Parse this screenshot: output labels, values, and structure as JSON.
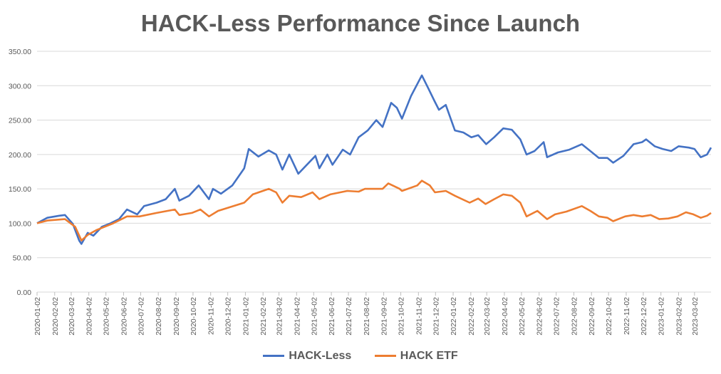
{
  "chart_data": {
    "type": "line",
    "title": "HACK-Less Performance Since Launch",
    "xlabel": "",
    "ylabel": "",
    "ylim": [
      0,
      350
    ],
    "y_ticks": [
      "0.00",
      "50.00",
      "100.00",
      "150.00",
      "200.00",
      "250.00",
      "300.00",
      "350.00"
    ],
    "x_ticks": [
      "2020-01-02",
      "2020-02-02",
      "2020-03-02",
      "2020-04-02",
      "2020-05-02",
      "2020-06-02",
      "2020-07-02",
      "2020-08-02",
      "2020-09-02",
      "2020-10-02",
      "2020-11-02",
      "2020-12-02",
      "2021-01-02",
      "2021-02-02",
      "2021-03-02",
      "2021-04-02",
      "2021-05-02",
      "2021-06-02",
      "2021-07-02",
      "2021-08-02",
      "2021-09-02",
      "2021-10-02",
      "2021-11-02",
      "2021-12-02",
      "2022-01-02",
      "2022-02-02",
      "2022-03-02",
      "2022-04-02",
      "2022-05-02",
      "2022-06-02",
      "2022-07-02",
      "2022-08-02",
      "2022-09-02",
      "2022-10-02",
      "2022-11-02",
      "2022-12-02",
      "2023-01-02",
      "2023-02-02",
      "2023-03-02"
    ],
    "grid": true,
    "legend_position": "bottom",
    "x_start": "2020-01-02",
    "x_end": "2023-03-31",
    "series": [
      {
        "name": "HACK-Less",
        "color": "#4472C4",
        "points": [
          [
            "2020-01-02",
            100
          ],
          [
            "2020-01-20",
            108
          ],
          [
            "2020-02-10",
            111
          ],
          [
            "2020-02-20",
            112
          ],
          [
            "2020-03-05",
            99
          ],
          [
            "2020-03-16",
            75
          ],
          [
            "2020-03-20",
            70
          ],
          [
            "2020-03-31",
            86
          ],
          [
            "2020-04-10",
            82
          ],
          [
            "2020-04-25",
            95
          ],
          [
            "2020-05-10",
            100
          ],
          [
            "2020-05-25",
            106
          ],
          [
            "2020-06-08",
            120
          ],
          [
            "2020-06-26",
            113
          ],
          [
            "2020-07-08",
            125
          ],
          [
            "2020-07-30",
            130
          ],
          [
            "2020-08-15",
            135
          ],
          [
            "2020-08-31",
            150
          ],
          [
            "2020-09-08",
            133
          ],
          [
            "2020-09-25",
            140
          ],
          [
            "2020-10-12",
            155
          ],
          [
            "2020-10-30",
            135
          ],
          [
            "2020-11-06",
            150
          ],
          [
            "2020-11-20",
            143
          ],
          [
            "2020-12-10",
            155
          ],
          [
            "2020-12-31",
            180
          ],
          [
            "2021-01-08",
            208
          ],
          [
            "2021-01-25",
            197
          ],
          [
            "2021-02-12",
            206
          ],
          [
            "2021-02-25",
            200
          ],
          [
            "2021-03-08",
            178
          ],
          [
            "2021-03-20",
            200
          ],
          [
            "2021-04-05",
            172
          ],
          [
            "2021-04-20",
            185
          ],
          [
            "2021-05-05",
            198
          ],
          [
            "2021-05-12",
            180
          ],
          [
            "2021-05-26",
            200
          ],
          [
            "2021-06-04",
            185
          ],
          [
            "2021-06-22",
            207
          ],
          [
            "2021-07-05",
            200
          ],
          [
            "2021-07-20",
            225
          ],
          [
            "2021-08-05",
            235
          ],
          [
            "2021-08-20",
            250
          ],
          [
            "2021-08-31",
            240
          ],
          [
            "2021-09-15",
            275
          ],
          [
            "2021-09-25",
            268
          ],
          [
            "2021-10-04",
            252
          ],
          [
            "2021-10-20",
            285
          ],
          [
            "2021-11-08",
            315
          ],
          [
            "2021-11-20",
            295
          ],
          [
            "2021-11-30",
            278
          ],
          [
            "2021-12-08",
            265
          ],
          [
            "2021-12-20",
            272
          ],
          [
            "2022-01-05",
            235
          ],
          [
            "2022-01-20",
            232
          ],
          [
            "2022-02-03",
            225
          ],
          [
            "2022-02-15",
            228
          ],
          [
            "2022-03-01",
            215
          ],
          [
            "2022-03-15",
            225
          ],
          [
            "2022-03-31",
            238
          ],
          [
            "2022-04-15",
            236
          ],
          [
            "2022-04-30",
            222
          ],
          [
            "2022-05-11",
            200
          ],
          [
            "2022-05-25",
            205
          ],
          [
            "2022-06-10",
            218
          ],
          [
            "2022-06-16",
            196
          ],
          [
            "2022-07-05",
            203
          ],
          [
            "2022-07-25",
            207
          ],
          [
            "2022-08-16",
            215
          ],
          [
            "2022-08-31",
            205
          ],
          [
            "2022-09-15",
            195
          ],
          [
            "2022-09-30",
            195
          ],
          [
            "2022-10-10",
            188
          ],
          [
            "2022-10-28",
            198
          ],
          [
            "2022-11-15",
            215
          ],
          [
            "2022-11-30",
            218
          ],
          [
            "2022-12-07",
            222
          ],
          [
            "2022-12-22",
            212
          ],
          [
            "2023-01-05",
            208
          ],
          [
            "2023-01-20",
            205
          ],
          [
            "2023-02-02",
            212
          ],
          [
            "2023-02-20",
            210
          ],
          [
            "2023-03-02",
            208
          ],
          [
            "2023-03-13",
            196
          ],
          [
            "2023-03-24",
            200
          ],
          [
            "2023-03-31",
            210
          ]
        ]
      },
      {
        "name": "HACK ETF",
        "color": "#ED7D31",
        "points": [
          [
            "2020-01-02",
            100
          ],
          [
            "2020-01-20",
            104
          ],
          [
            "2020-02-20",
            106
          ],
          [
            "2020-03-09",
            95
          ],
          [
            "2020-03-20",
            75
          ],
          [
            "2020-03-31",
            83
          ],
          [
            "2020-04-15",
            90
          ],
          [
            "2020-05-15",
            100
          ],
          [
            "2020-06-08",
            110
          ],
          [
            "2020-06-30",
            110
          ],
          [
            "2020-07-30",
            115
          ],
          [
            "2020-08-31",
            120
          ],
          [
            "2020-09-08",
            112
          ],
          [
            "2020-09-30",
            115
          ],
          [
            "2020-10-15",
            120
          ],
          [
            "2020-10-30",
            110
          ],
          [
            "2020-11-15",
            118
          ],
          [
            "2020-11-30",
            122
          ],
          [
            "2020-12-31",
            130
          ],
          [
            "2021-01-15",
            142
          ],
          [
            "2021-02-12",
            150
          ],
          [
            "2021-02-25",
            145
          ],
          [
            "2021-03-08",
            130
          ],
          [
            "2021-03-20",
            140
          ],
          [
            "2021-04-10",
            138
          ],
          [
            "2021-04-30",
            145
          ],
          [
            "2021-05-12",
            135
          ],
          [
            "2021-05-31",
            142
          ],
          [
            "2021-06-30",
            147
          ],
          [
            "2021-07-20",
            146
          ],
          [
            "2021-07-31",
            150
          ],
          [
            "2021-08-31",
            150
          ],
          [
            "2021-09-10",
            158
          ],
          [
            "2021-09-30",
            150
          ],
          [
            "2021-10-04",
            147
          ],
          [
            "2021-10-31",
            155
          ],
          [
            "2021-11-08",
            162
          ],
          [
            "2021-11-22",
            155
          ],
          [
            "2021-12-01",
            145
          ],
          [
            "2021-12-20",
            147
          ],
          [
            "2022-01-05",
            140
          ],
          [
            "2022-01-31",
            130
          ],
          [
            "2022-02-15",
            136
          ],
          [
            "2022-02-28",
            128
          ],
          [
            "2022-03-15",
            135
          ],
          [
            "2022-03-31",
            142
          ],
          [
            "2022-04-15",
            140
          ],
          [
            "2022-04-30",
            130
          ],
          [
            "2022-05-11",
            110
          ],
          [
            "2022-05-30",
            118
          ],
          [
            "2022-06-16",
            106
          ],
          [
            "2022-06-30",
            113
          ],
          [
            "2022-07-20",
            117
          ],
          [
            "2022-08-16",
            125
          ],
          [
            "2022-08-31",
            118
          ],
          [
            "2022-09-15",
            110
          ],
          [
            "2022-09-30",
            108
          ],
          [
            "2022-10-10",
            103
          ],
          [
            "2022-10-31",
            110
          ],
          [
            "2022-11-15",
            112
          ],
          [
            "2022-11-30",
            110
          ],
          [
            "2022-12-15",
            112
          ],
          [
            "2022-12-30",
            106
          ],
          [
            "2023-01-15",
            107
          ],
          [
            "2023-01-31",
            110
          ],
          [
            "2023-02-15",
            116
          ],
          [
            "2023-02-28",
            113
          ],
          [
            "2023-03-13",
            108
          ],
          [
            "2023-03-24",
            111
          ],
          [
            "2023-03-31",
            115
          ]
        ]
      }
    ]
  }
}
